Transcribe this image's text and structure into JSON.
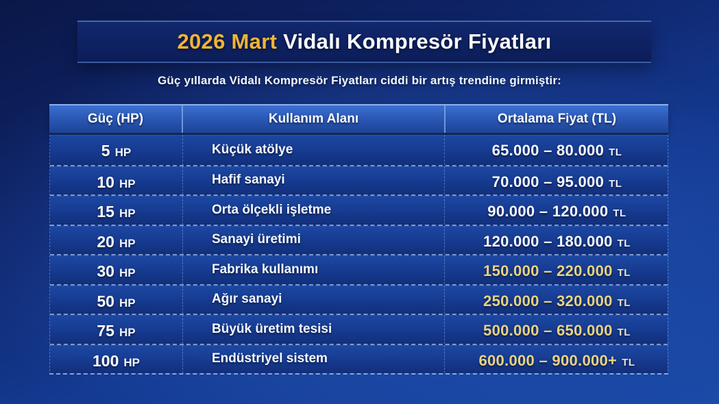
{
  "title": {
    "highlight": "2026 Mart",
    "rest": " Vidalı Kompresör Fiyatları"
  },
  "subtitle": "Güç yıllarda Vidalı Kompresör Fiyatları ciddi bir artış trendine girmiştir:",
  "table": {
    "headers": [
      "Güç (HP)",
      "Kullanım Alanı",
      "Ortalama Fiyat (TL)"
    ],
    "rows": [
      {
        "power": "5",
        "power_unit": "HP",
        "usage": "Küçük atölye",
        "price": "65.000 – 80.000",
        "price_unit": "TL",
        "price_color": "white"
      },
      {
        "power": "10",
        "power_unit": "HP",
        "usage": "Hafif sanayi",
        "price": "70.000 – 95.000",
        "price_unit": "TL",
        "price_color": "white"
      },
      {
        "power": "15",
        "power_unit": "HP",
        "usage": "Orta ölçekli işletme",
        "price": "90.000 – 120.000",
        "price_unit": "TL",
        "price_color": "white"
      },
      {
        "power": "20",
        "power_unit": "HP",
        "usage": "Sanayi üretimi",
        "price": "120.000 – 180.000",
        "price_unit": "TL",
        "price_color": "white"
      },
      {
        "power": "30",
        "power_unit": "HP",
        "usage": "Fabrika kullanımı",
        "price": "150.000 – 220.000",
        "price_unit": "TL",
        "price_color": "gold"
      },
      {
        "power": "50",
        "power_unit": "HP",
        "usage": "Ağır sanayi",
        "price": "250.000 – 320.000",
        "price_unit": "TL",
        "price_color": "gold"
      },
      {
        "power": "75",
        "power_unit": "HP",
        "usage": "Büyük üretim tesisi",
        "price": "500.000 – 650.000",
        "price_unit": "TL",
        "price_color": "gold"
      },
      {
        "power": "100",
        "power_unit": "HP",
        "usage": "Endüstriyel sistem",
        "price": "600.000 – 900.000+",
        "price_unit": "TL",
        "price_color": "gold"
      }
    ]
  },
  "chart_data": {
    "type": "table",
    "title": "2026 Mart Vidalı Kompresör Fiyatları",
    "subtitle": "Güç yıllarda Vidalı Kompresör Fiyatları ciddi bir artış trendine girmiştir:",
    "columns": [
      "Güç (HP)",
      "Kullanım Alanı",
      "Ortalama Fiyat (TL)"
    ],
    "rows": [
      [
        "5 HP",
        "Küçük atölye",
        "65.000 – 80.000 TL"
      ],
      [
        "10 HP",
        "Hafif sanayi",
        "70.000 – 95.000 TL"
      ],
      [
        "15 HP",
        "Orta ölçekli işletme",
        "90.000 – 120.000 TL"
      ],
      [
        "20 HP",
        "Sanayi üretimi",
        "120.000 – 180.000 TL"
      ],
      [
        "30 HP",
        "Fabrika kullanımı",
        "150.000 – 220.000 TL"
      ],
      [
        "50 HP",
        "Ağır sanayi",
        "250.000 – 320.000 TL"
      ],
      [
        "75 HP",
        "Büyük üretim tesisi",
        "500.000 – 650.000 TL"
      ],
      [
        "100 HP",
        "Endüstriyel sistem",
        "600.000 – 900.000+ TL"
      ]
    ],
    "power_hp": [
      5,
      10,
      15,
      20,
      30,
      50,
      75,
      100
    ],
    "price_min_tl": [
      65000,
      70000,
      90000,
      120000,
      150000,
      250000,
      500000,
      600000
    ],
    "price_max_tl": [
      80000,
      95000,
      120000,
      180000,
      220000,
      320000,
      650000,
      900000
    ]
  },
  "colors": {
    "accent_gold": "#f0b536",
    "price_gold": "#e9d382",
    "text_white": "#ffffff",
    "header_blue": "#2a58b4",
    "row_blue": "#163a90",
    "banner_navy": "#0c1d58",
    "background_navy": "#0e2264",
    "divider_light_blue": "#a8caf8"
  }
}
